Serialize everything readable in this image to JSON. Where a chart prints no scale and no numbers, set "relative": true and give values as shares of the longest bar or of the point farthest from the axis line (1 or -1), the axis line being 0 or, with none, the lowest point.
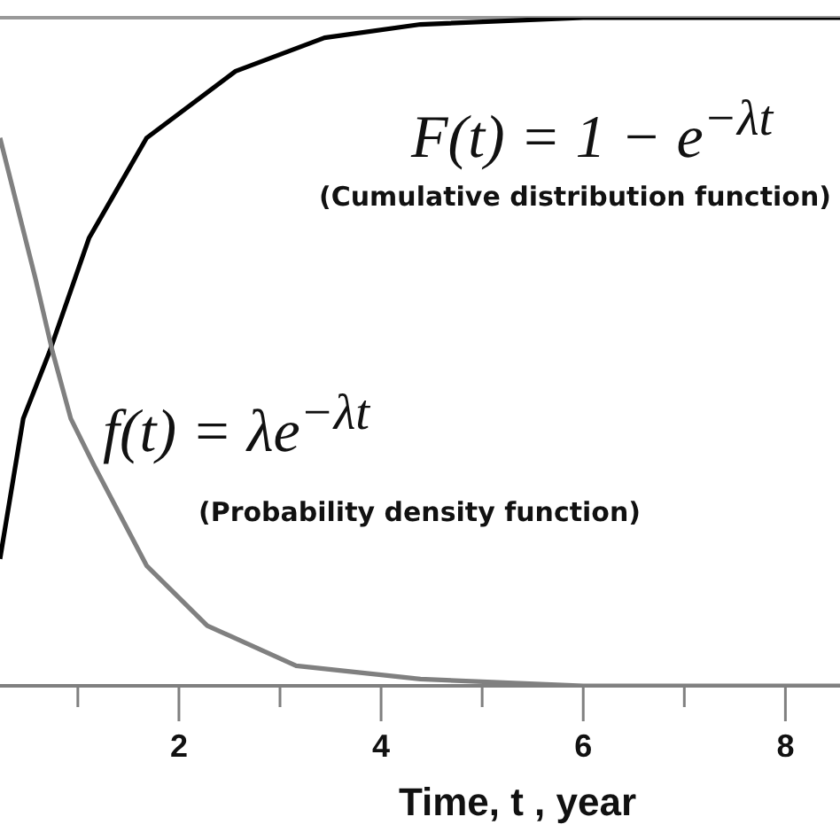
{
  "chart_data": {
    "type": "line",
    "relative": true,
    "xlabel": "Time, t , year",
    "x": [
      0.23,
      0.46,
      0.72,
      1.11,
      1.68,
      2.56,
      3.44,
      4.39,
      6.0,
      8.54
    ],
    "xlim": [
      0.23,
      8.54
    ],
    "xticks": [
      {
        "value": 1,
        "label": null
      },
      2,
      {
        "value": 3,
        "label": null
      },
      4,
      {
        "value": 5,
        "label": null
      },
      6,
      {
        "value": 7,
        "label": null
      },
      8
    ],
    "series": [
      {
        "color": "#000000",
        "values": [
          0.19,
          0.4,
          0.5,
          0.67,
          0.82,
          0.92,
          0.97,
          0.99,
          1.0,
          1.0
        ]
      },
      {
        "color": "#808080",
        "x": [
          0.23,
          0.58,
          0.75,
          0.93,
          1.16,
          1.68,
          2.28,
          3.16,
          4.39,
          6.0,
          8.54
        ],
        "values": [
          0.82,
          0.61,
          0.5,
          0.4,
          0.33,
          0.18,
          0.09,
          0.03,
          0.01,
          0.0,
          0.0
        ]
      }
    ],
    "annotations": [
      "F(t) = 1 − e$^{−λt}$",
      "(Cumulative distribution function)",
      "f(t) = λe$^{−λt}$",
      "(Probability density function)"
    ],
    "grid": false,
    "marker": "none",
    "line_style": "solid"
  }
}
